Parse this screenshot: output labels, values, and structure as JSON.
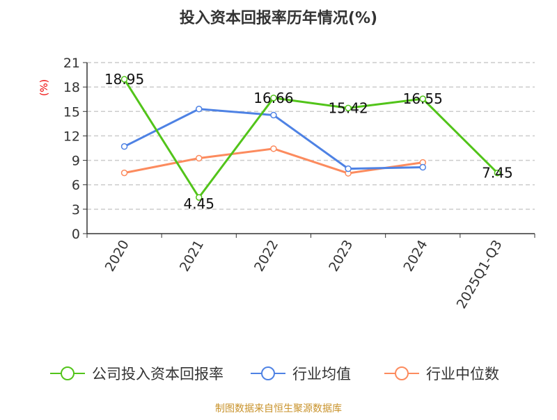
{
  "chart_data": {
    "type": "line",
    "title": "投入资本回报率历年情况(%)",
    "ylabel": "(%)",
    "xlabel": "",
    "categories": [
      "2020",
      "2021",
      "2022",
      "2023",
      "2024",
      "2025Q1-Q3"
    ],
    "ylim": [
      0,
      21
    ],
    "yticks": [
      0,
      3,
      6,
      9,
      12,
      15,
      18,
      21
    ],
    "grid": true,
    "legend_position": "bottom",
    "series": [
      {
        "name": "公司投入资本回报率",
        "color": "#52c41a",
        "values": [
          18.95,
          4.45,
          16.66,
          15.42,
          16.55,
          7.45
        ],
        "labels": [
          "18.95",
          "4.45",
          "16.66",
          "15.42",
          "16.55",
          "7.45"
        ]
      },
      {
        "name": "行业均值",
        "color": "#4e82e4",
        "values": [
          10.7,
          15.3,
          14.55,
          7.97,
          8.15,
          null
        ]
      },
      {
        "name": "行业中位数",
        "color": "#fc8b5e",
        "values": [
          7.46,
          9.26,
          10.43,
          7.41,
          8.74,
          null
        ]
      }
    ],
    "source": "制图数据来自恒生聚源数据库"
  }
}
